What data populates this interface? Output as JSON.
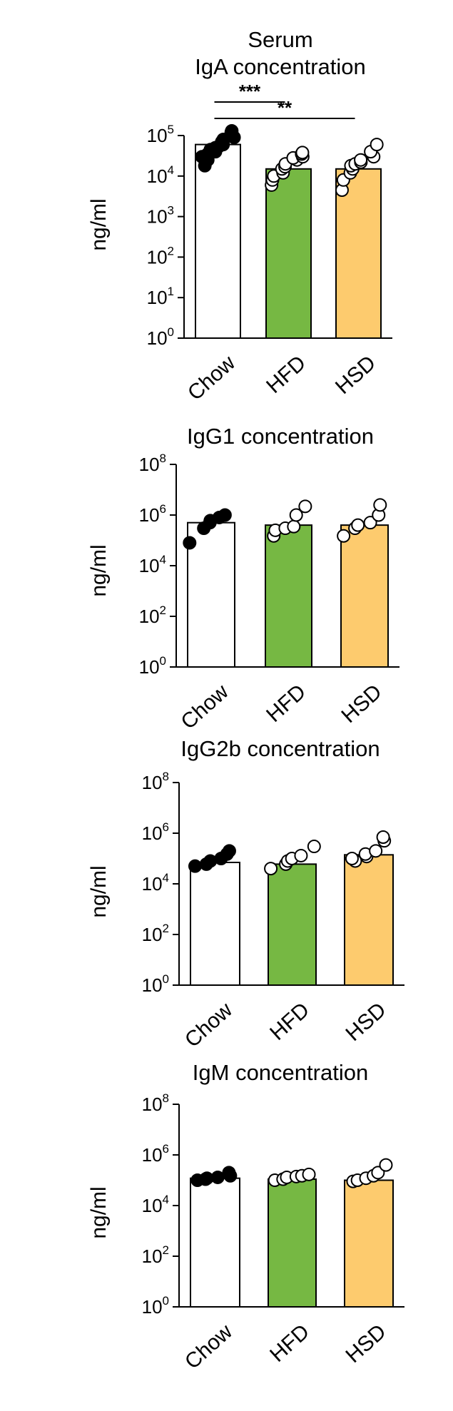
{
  "figure_title": "Serum",
  "colors": {
    "chow_bar": "#ffffff",
    "hfd_bar": "#76b843",
    "hsd_bar": "#fdcb6e",
    "chow_dots": "#000000",
    "other_dots": "#ffffff"
  },
  "chart_data": [
    {
      "type": "bar",
      "title": "IgA concentration",
      "ylabel": "ng/ml",
      "yscale": "log",
      "ylim": [
        1,
        100000
      ],
      "yticks": [
        "10^0",
        "10^1",
        "10^2",
        "10^3",
        "10^4",
        "10^5"
      ],
      "categories": [
        "Chow",
        "HFD",
        "HSD"
      ],
      "values": [
        60000,
        15000,
        15000
      ],
      "points": [
        [
          18000,
          25000,
          30000,
          35000,
          40000,
          45000,
          50000,
          55000,
          60000,
          70000,
          80000,
          90000,
          120000,
          130000
        ],
        [
          6000,
          8000,
          10000,
          12000,
          15000,
          17000,
          20000,
          25000,
          28000,
          30000,
          35000,
          38000
        ],
        [
          4500,
          8000,
          12000,
          15000,
          18000,
          20000,
          22000,
          25000,
          30000,
          40000,
          60000
        ]
      ],
      "significance": [
        {
          "groups": [
            0,
            1
          ],
          "label": "***"
        },
        {
          "groups": [
            0,
            2
          ],
          "label": "**"
        }
      ]
    },
    {
      "type": "bar",
      "title": "IgG1 concentration",
      "ylabel": "ng/ml",
      "yscale": "log",
      "ylim": [
        1,
        100000000
      ],
      "yticks": [
        "10^0",
        "10^2",
        "10^4",
        "10^6",
        "10^8"
      ],
      "categories": [
        "Chow",
        "HFD",
        "HSD"
      ],
      "values": [
        500000,
        400000,
        400000
      ],
      "points": [
        [
          80000,
          300000,
          500000,
          600000,
          800000,
          1000000
        ],
        [
          150000,
          250000,
          300000,
          350000,
          1000000,
          2200000
        ],
        [
          150000,
          300000,
          400000,
          500000,
          1000000,
          2500000
        ]
      ]
    },
    {
      "type": "bar",
      "title": "IgG2b concentration",
      "ylabel": "ng/ml",
      "yscale": "log",
      "ylim": [
        1,
        100000000
      ],
      "yticks": [
        "10^0",
        "10^2",
        "10^4",
        "10^6",
        "10^8"
      ],
      "categories": [
        "Chow",
        "HFD",
        "HSD"
      ],
      "values": [
        70000,
        60000,
        140000
      ],
      "points": [
        [
          50000,
          60000,
          80000,
          100000,
          150000,
          200000
        ],
        [
          40000,
          60000,
          80000,
          100000,
          130000,
          300000
        ],
        [
          80000,
          100000,
          120000,
          150000,
          200000,
          500000,
          700000
        ]
      ]
    },
    {
      "type": "bar",
      "title": "IgM concentration",
      "ylabel": "ng/ml",
      "yscale": "log",
      "ylim": [
        1,
        100000000
      ],
      "yticks": [
        "10^0",
        "10^2",
        "10^4",
        "10^6",
        "10^8"
      ],
      "categories": [
        "Chow",
        "HFD",
        "HSD"
      ],
      "values": [
        120000,
        110000,
        100000
      ],
      "points": [
        [
          100000,
          110000,
          120000,
          130000,
          150000,
          200000
        ],
        [
          100000,
          110000,
          130000,
          140000,
          150000,
          170000
        ],
        [
          90000,
          100000,
          120000,
          150000,
          200000,
          400000
        ]
      ]
    }
  ]
}
